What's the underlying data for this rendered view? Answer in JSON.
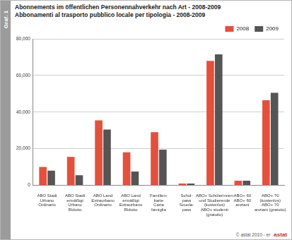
{
  "chart_data": {
    "type": "bar",
    "title": [
      "Abonnements im öffentlichen Personennahverkehr nach Art - 2008-2009",
      "Abbonamenti al trasporto pubblico locale per tipologia - 2008-2009"
    ],
    "side_label": "Graf. 1",
    "footer": "© astat 2010 - er",
    "logo_text": "astat",
    "categories": [
      [
        "ABO Stadt",
        "Urbano",
        "Ordinario"
      ],
      [
        "ABO Stadt",
        "ermäßigt",
        "Urbano",
        "Ridotto"
      ],
      [
        "ABO Land",
        "Extraurbano",
        "Ordinario"
      ],
      [
        "ABO Land",
        "ermäßigt",
        "Extraurbano",
        "Ridotto"
      ],
      [
        "Familien-",
        "karte",
        "Carta",
        "famiglia"
      ],
      [
        "Schul-",
        "pass",
        "Scuola-",
        "pass"
      ],
      [
        "ABO+ Schülerinnen",
        "und Studierende",
        "(kostenlos)",
        "ABO+ studenti",
        "(gratuito)"
      ],
      [
        "ABO+ 60",
        "ABO+ 60",
        "anziani"
      ],
      [
        "ABO+ 70",
        "(kostenlos)",
        "ABO+ 70",
        "anziani (gratuito)"
      ]
    ],
    "series": [
      {
        "name": "2008",
        "color": "#e4503b",
        "values": [
          10000,
          15500,
          35500,
          18000,
          29000,
          1000,
          68000,
          2500,
          46500
        ]
      },
      {
        "name": "2009",
        "color": "#555555",
        "values": [
          8000,
          5500,
          30500,
          7500,
          19500,
          1000,
          71500,
          2500,
          50500
        ]
      }
    ],
    "ylim": [
      0,
      80000
    ],
    "yticks": [
      0,
      {
        "value": 20000,
        "label": "20,000"
      },
      {
        "value": 40000,
        "label": "40,000"
      },
      {
        "value": 60000,
        "label": "60,000"
      },
      {
        "value": 80000,
        "label": "80,000"
      }
    ],
    "grid": true,
    "legend": "top-right"
  }
}
